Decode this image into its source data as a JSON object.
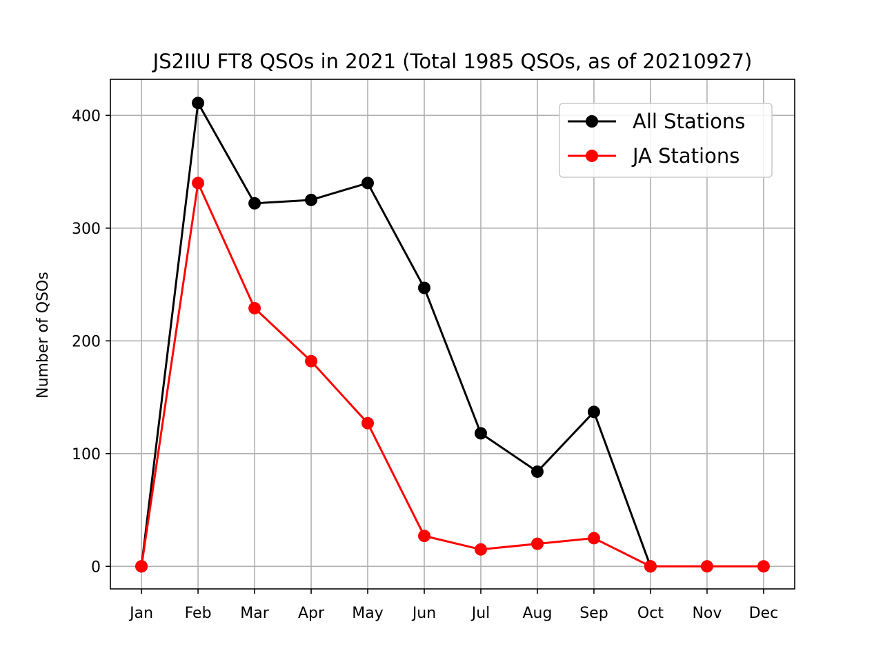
{
  "chart_data": {
    "type": "line",
    "title": "JS2IIU FT8 QSOs in 2021 (Total 1985 QSOs, as of 20210927)",
    "xlabel": "",
    "ylabel": "Number of QSOs",
    "categories": [
      "Jan",
      "Feb",
      "Mar",
      "Apr",
      "May",
      "Jun",
      "Jul",
      "Aug",
      "Sep",
      "Oct",
      "Nov",
      "Dec"
    ],
    "ylim": [
      -20,
      432
    ],
    "yticks": [
      0,
      100,
      200,
      300,
      400
    ],
    "grid": true,
    "legend_position": "top-right",
    "series": [
      {
        "name": "All Stations",
        "color": "#000000",
        "values": [
          0,
          411,
          322,
          325,
          340,
          247,
          118,
          84,
          137,
          0,
          null,
          null
        ]
      },
      {
        "name": "JA Stations",
        "color": "#ff0000",
        "values": [
          0,
          340,
          229,
          182,
          127,
          27,
          15,
          20,
          25,
          0,
          0,
          0
        ]
      }
    ]
  }
}
